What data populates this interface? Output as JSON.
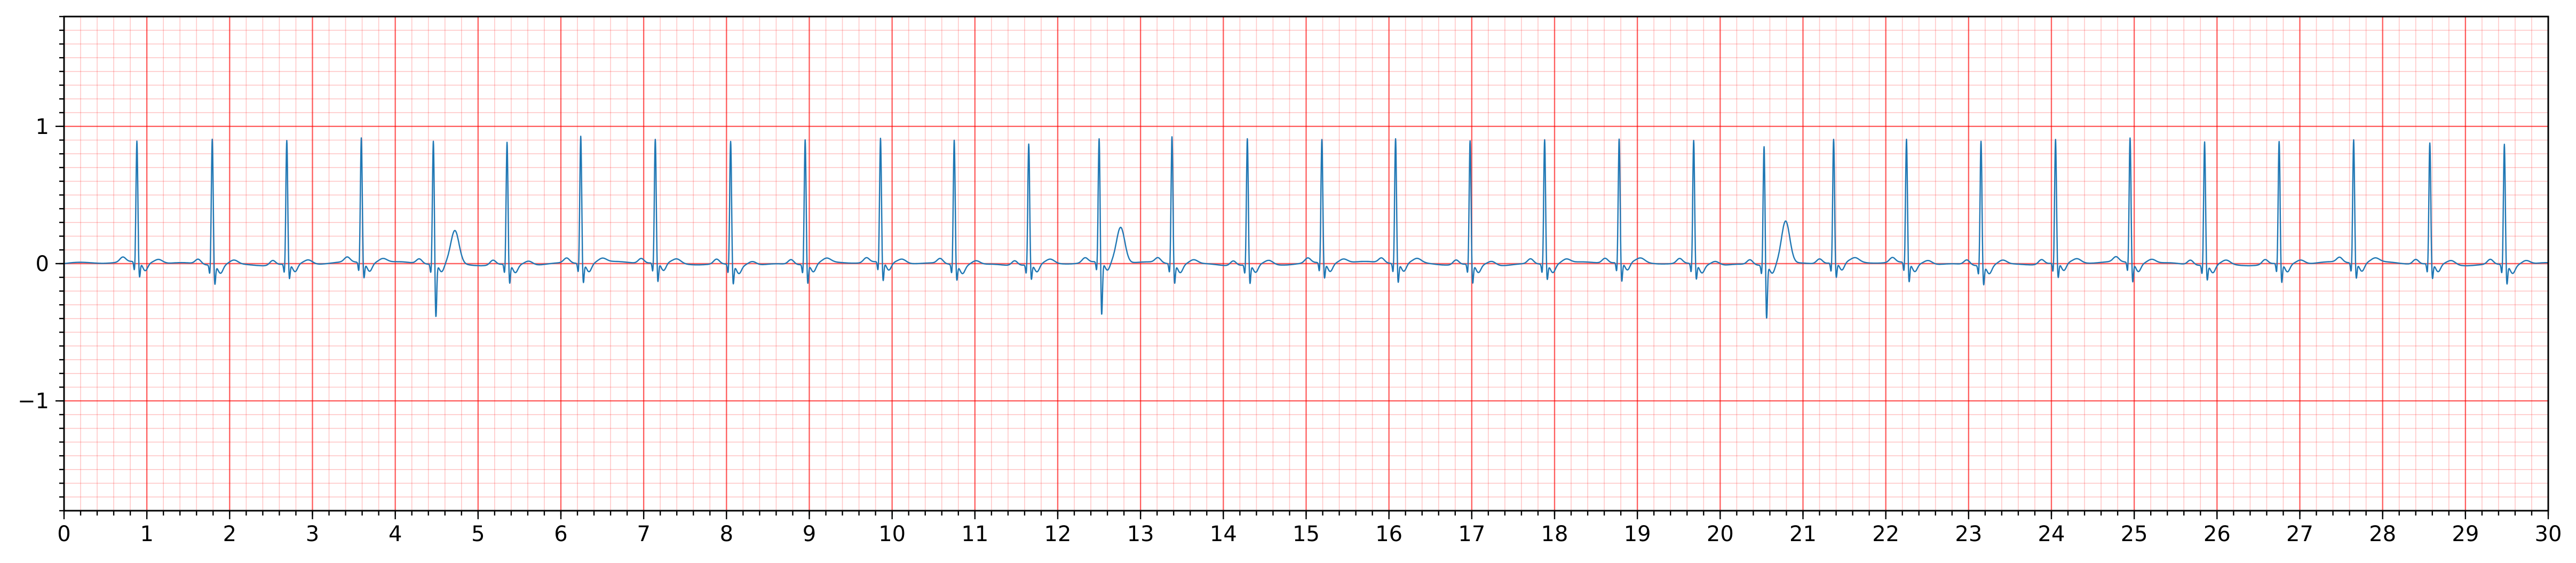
{
  "chart_data": {
    "type": "line",
    "title": "",
    "xlabel": "",
    "ylabel": "",
    "xlim": [
      0,
      30
    ],
    "ylim": [
      -1.8,
      1.8
    ],
    "x_ticks": [
      0,
      1,
      2,
      3,
      4,
      5,
      6,
      7,
      8,
      9,
      10,
      11,
      12,
      13,
      14,
      15,
      16,
      17,
      18,
      19,
      20,
      21,
      22,
      23,
      24,
      25,
      26,
      27,
      28,
      29,
      30
    ],
    "x_tick_labels": [
      "0",
      "1",
      "2",
      "3",
      "4",
      "5",
      "6",
      "7",
      "8",
      "9",
      "10",
      "11",
      "12",
      "13",
      "14",
      "15",
      "16",
      "17",
      "18",
      "19",
      "20",
      "21",
      "22",
      "23",
      "24",
      "25",
      "26",
      "27",
      "28",
      "29",
      "30"
    ],
    "y_ticks": [
      -1,
      0,
      1
    ],
    "y_tick_labels": [
      "−1",
      "0",
      "1"
    ],
    "x_minor_step": 0.2,
    "y_minor_step": 0.1,
    "grid": true,
    "colors": {
      "line": "#1f77b4",
      "grid": "#ff0000"
    },
    "series": [
      {
        "beats": [
          {
            "t": 0.88,
            "r": 0.88,
            "s": -0.12,
            "tw": 0.03
          },
          {
            "t": 1.79,
            "r": 0.92,
            "s": -0.15,
            "tw": 0.03
          },
          {
            "t": 2.69,
            "r": 0.9,
            "s": -0.12,
            "tw": 0.03
          },
          {
            "t": 3.59,
            "r": 0.91,
            "s": -0.12,
            "tw": 0.03
          },
          {
            "t": 4.46,
            "r": 0.9,
            "s": -0.4,
            "tw": 0.24
          },
          {
            "t": 5.35,
            "r": 0.89,
            "s": -0.15,
            "tw": 0.03
          },
          {
            "t": 6.24,
            "r": 0.93,
            "s": -0.15,
            "tw": 0.03
          },
          {
            "t": 7.14,
            "r": 0.9,
            "s": -0.15,
            "tw": 0.03
          },
          {
            "t": 8.05,
            "r": 0.9,
            "s": -0.15,
            "tw": 0.03
          },
          {
            "t": 8.95,
            "r": 0.91,
            "s": -0.15,
            "tw": 0.03
          },
          {
            "t": 9.86,
            "r": 0.9,
            "s": -0.15,
            "tw": 0.03
          },
          {
            "t": 10.75,
            "r": 0.91,
            "s": -0.12,
            "tw": 0.03
          },
          {
            "t": 11.65,
            "r": 0.88,
            "s": -0.12,
            "tw": 0.03
          },
          {
            "t": 12.5,
            "r": 0.9,
            "s": -0.4,
            "tw": 0.26
          },
          {
            "t": 13.38,
            "r": 0.93,
            "s": -0.15,
            "tw": 0.03
          },
          {
            "t": 14.29,
            "r": 0.92,
            "s": -0.15,
            "tw": 0.03
          },
          {
            "t": 15.19,
            "r": 0.9,
            "s": -0.12,
            "tw": 0.03
          },
          {
            "t": 16.08,
            "r": 0.91,
            "s": -0.15,
            "tw": 0.03
          },
          {
            "t": 16.98,
            "r": 0.9,
            "s": -0.15,
            "tw": 0.03
          },
          {
            "t": 17.88,
            "r": 0.91,
            "s": -0.12,
            "tw": 0.03
          },
          {
            "t": 18.78,
            "r": 0.9,
            "s": -0.15,
            "tw": 0.03
          },
          {
            "t": 19.68,
            "r": 0.9,
            "s": -0.12,
            "tw": 0.03
          },
          {
            "t": 20.53,
            "r": 0.87,
            "s": -0.4,
            "tw": 0.31
          },
          {
            "t": 21.37,
            "r": 0.9,
            "s": -0.12,
            "tw": 0.03
          },
          {
            "t": 22.25,
            "r": 0.9,
            "s": -0.15,
            "tw": 0.03
          },
          {
            "t": 23.15,
            "r": 0.91,
            "s": -0.15,
            "tw": 0.03
          },
          {
            "t": 24.05,
            "r": 0.9,
            "s": -0.12,
            "tw": 0.03
          },
          {
            "t": 24.95,
            "r": 0.91,
            "s": -0.15,
            "tw": 0.03
          },
          {
            "t": 25.85,
            "r": 0.9,
            "s": -0.12,
            "tw": 0.03
          },
          {
            "t": 26.75,
            "r": 0.89,
            "s": -0.15,
            "tw": 0.03
          },
          {
            "t": 27.65,
            "r": 0.9,
            "s": -0.12,
            "tw": 0.03
          },
          {
            "t": 28.57,
            "r": 0.88,
            "s": -0.12,
            "tw": 0.03
          },
          {
            "t": 29.47,
            "r": 0.88,
            "s": -0.15,
            "tw": 0.03
          }
        ]
      }
    ]
  }
}
